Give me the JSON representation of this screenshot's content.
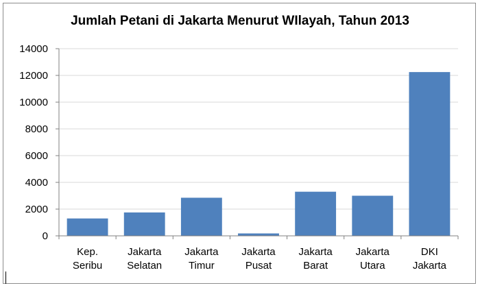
{
  "chart_data": {
    "type": "bar",
    "title": "Jumlah Petani di Jakarta Menurut WIlayah, Tahun 2013",
    "categories": [
      [
        "Kep.",
        "Seribu"
      ],
      [
        "Jakarta",
        "Selatan"
      ],
      [
        "Jakarta",
        "Timur"
      ],
      [
        "Jakarta",
        "Pusat"
      ],
      [
        "Jakarta",
        "Barat"
      ],
      [
        "Jakarta",
        "Utara"
      ],
      [
        "DKI",
        "Jakarta"
      ]
    ],
    "values": [
      1300,
      1750,
      2850,
      180,
      3300,
      3000,
      12250
    ],
    "ylim": [
      0,
      14000
    ],
    "yticks": [
      "0",
      "2000",
      "4000",
      "6000",
      "8000",
      "10000",
      "12000",
      "14000"
    ],
    "grid": true,
    "legend": "none",
    "bar_color": "#4f81bd"
  }
}
